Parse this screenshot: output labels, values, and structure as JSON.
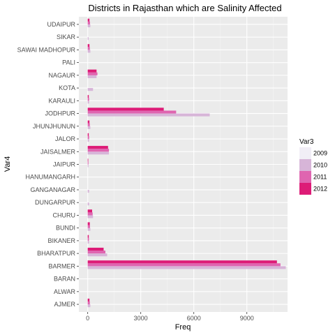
{
  "chart_data": {
    "type": "bar",
    "orientation": "horizontal",
    "title": "Districts in Rajasthan which are Salinity Affected",
    "xlabel": "Freq",
    "ylabel": "Var4",
    "xlim": [
      -500,
      11300
    ],
    "xticks": [
      0,
      3000,
      6000,
      9000
    ],
    "xtick_labels": [
      "0",
      "3000",
      "6000",
      "9000"
    ],
    "grid": true,
    "legend": {
      "title": "Var3",
      "position": "right"
    },
    "categories": [
      "AJMER",
      "ALWAR",
      "BARAN",
      "BARMER",
      "BHARATPUR",
      "BIKANER",
      "BUNDI",
      "CHURU",
      "DUNGARPUR",
      "GANGANAGAR",
      "HANUMANGARH",
      "JAIPUR",
      "JAISALMER",
      "JALOR",
      "JHUNJHUNUN",
      "JODHPUR",
      "KARAULI",
      "KOTA",
      "NAGAUR",
      "PALI",
      "SAWAI MADHOPUR",
      "SIKAR",
      "UDAIPUR"
    ],
    "series": [
      {
        "name": "2009",
        "color": "#f1eef6",
        "values": [
          0,
          0,
          0,
          0,
          0,
          0,
          0,
          0,
          0,
          0,
          0,
          0,
          0,
          0,
          0,
          0,
          0,
          0,
          0,
          0,
          0,
          0,
          0
        ]
      },
      {
        "name": "2010",
        "color": "#d7b5d8",
        "values": [
          150,
          0,
          0,
          11200,
          1100,
          80,
          150,
          300,
          80,
          80,
          0,
          40,
          1200,
          80,
          150,
          6900,
          80,
          300,
          500,
          0,
          150,
          50,
          150
        ]
      },
      {
        "name": "2011",
        "color": "#df65b0",
        "values": [
          120,
          0,
          0,
          10900,
          1000,
          70,
          130,
          280,
          0,
          0,
          0,
          40,
          1200,
          80,
          120,
          5000,
          80,
          0,
          550,
          0,
          120,
          0,
          130
        ]
      },
      {
        "name": "2012",
        "color": "#dd1c77",
        "values": [
          100,
          0,
          0,
          10700,
          900,
          60,
          120,
          250,
          0,
          0,
          0,
          30,
          1150,
          60,
          100,
          4300,
          60,
          0,
          500,
          0,
          100,
          0,
          100
        ]
      }
    ]
  }
}
